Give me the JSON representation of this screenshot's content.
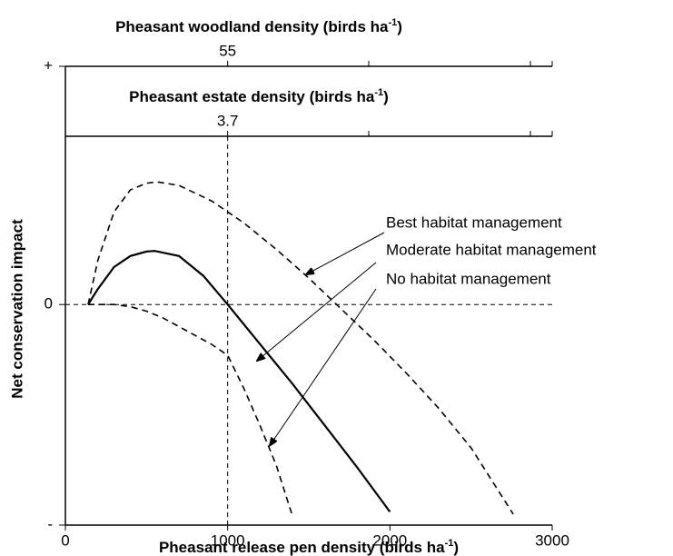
{
  "chart_data": {
    "type": "line",
    "xlabel": "Pheasant release pen density (birds ha",
    "xlabel_sup": "-1",
    "xlabel_end": ")",
    "ylabel": "Net conservation impact",
    "xlim": [
      0,
      3000
    ],
    "xticks": [
      0,
      1000,
      2000,
      3000
    ],
    "ylim": [
      -1,
      1.08
    ],
    "yticks": [
      {
        "value": -1,
        "label": "-"
      },
      0,
      {
        "value": 1.08,
        "label": "+"
      }
    ],
    "reference_x": 1000,
    "reference_y": 0,
    "top_axes": [
      {
        "label": "Pheasant woodland density (birds ha",
        "label_sup": "-1",
        "label_end": ")",
        "tick_at": 1000,
        "tick_label": 55
      },
      {
        "label": "Pheasant estate density (birds ha",
        "label_sup": "-1",
        "label_end": ")",
        "tick_at": 1000,
        "tick_label": 3.7
      }
    ],
    "series": [
      {
        "name": "Best habitat management",
        "color": "#000000",
        "dash": true,
        "x": [
          140,
          200,
          300,
          400,
          500,
          565,
          700,
          900,
          1100,
          1300,
          1500,
          1700,
          1900,
          2100,
          2300,
          2500,
          2760
        ],
        "values": [
          0,
          0.2,
          0.42,
          0.52,
          0.55,
          0.556,
          0.54,
          0.47,
          0.37,
          0.25,
          0.12,
          -0.02,
          -0.16,
          -0.31,
          -0.47,
          -0.65,
          -0.95
        ]
      },
      {
        "name": "Moderate habitat management",
        "color": "#000000",
        "dash": false,
        "x": [
          140,
          200,
          300,
          400,
          500,
          550,
          700,
          850,
          1000,
          1200,
          1400,
          1600,
          1800,
          2000
        ],
        "values": [
          0,
          0.07,
          0.17,
          0.22,
          0.24,
          0.243,
          0.22,
          0.13,
          0,
          -0.18,
          -0.36,
          -0.55,
          -0.74,
          -0.94
        ]
      },
      {
        "name": "No habitat management",
        "color": "#000000",
        "dash": true,
        "x": [
          140,
          200,
          300,
          400,
          500,
          600,
          700,
          800,
          900,
          1000,
          1100,
          1200,
          1300,
          1400
        ],
        "values": [
          0,
          0,
          0,
          -0.01,
          -0.03,
          -0.06,
          -0.1,
          -0.14,
          -0.18,
          -0.23,
          -0.38,
          -0.55,
          -0.73,
          -0.96
        ]
      }
    ],
    "annotation_targets": [
      [
        1483,
        0.136
      ],
      [
        1181,
        -0.255
      ],
      [
        1259,
        -0.64
      ]
    ]
  }
}
